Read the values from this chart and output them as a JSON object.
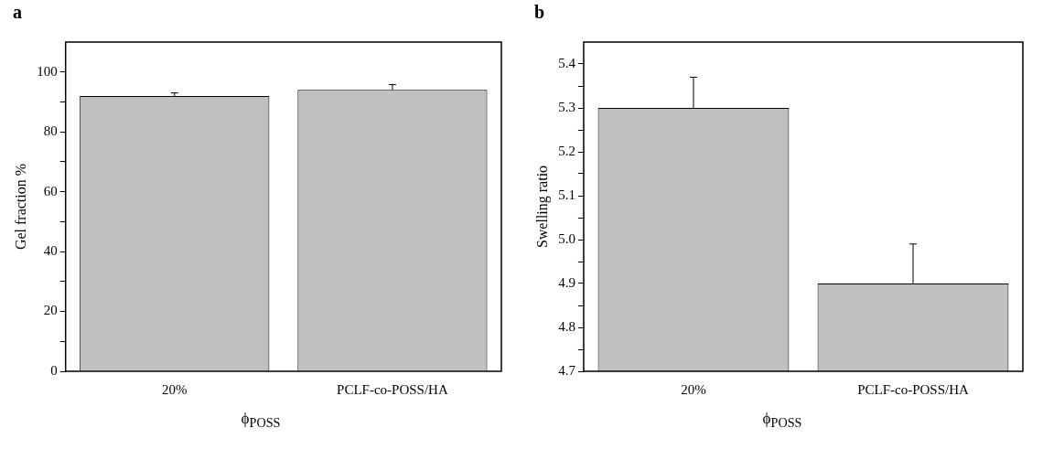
{
  "chart_data": [
    {
      "type": "bar",
      "title": "a",
      "xlabel": "ϕ$_{POSS}$",
      "ylabel": "Gel fraction %",
      "categories": [
        "20%",
        "PCLF-co-POSS/HA"
      ],
      "values": [
        92,
        94
      ],
      "errors": [
        1,
        1.8
      ],
      "color": "#c0c0c0",
      "ylim": [
        0,
        110
      ],
      "yticks": [
        0,
        {
          "value": 10,
          "label": null
        },
        20,
        {
          "value": 30,
          "label": null
        },
        40,
        {
          "value": 50,
          "label": null
        },
        60,
        {
          "value": 70,
          "label": null
        },
        80,
        {
          "value": 90,
          "label": null
        },
        100
      ],
      "grid": false,
      "legend": false
    },
    {
      "type": "bar",
      "title": "b",
      "xlabel": "ϕ$_{POSS}$",
      "ylabel": "Swelling ratio",
      "categories": [
        "20%",
        "PCLF-co-POSS/HA"
      ],
      "values": [
        5.3,
        4.9
      ],
      "errors": [
        0.07,
        0.09
      ],
      "color": "#c0c0c0",
      "ylim": [
        4.7,
        5.45
      ],
      "yticks": [
        {
          "value": 4.7,
          "label": "4.7"
        },
        {
          "value": 4.75,
          "label": null
        },
        {
          "value": 4.8,
          "label": "4.8"
        },
        {
          "value": 4.85,
          "label": null
        },
        {
          "value": 4.9,
          "label": "4.9"
        },
        {
          "value": 4.95,
          "label": null
        },
        {
          "value": 5.0,
          "label": "5.0"
        },
        {
          "value": 5.05,
          "label": null
        },
        {
          "value": 5.1,
          "label": "5.1"
        },
        {
          "value": 5.15,
          "label": null
        },
        {
          "value": 5.2,
          "label": "5.2"
        },
        {
          "value": 5.25,
          "label": null
        },
        {
          "value": 5.3,
          "label": "5.3"
        },
        {
          "value": 5.35,
          "label": null
        },
        {
          "value": 5.4,
          "label": "5.4"
        }
      ],
      "grid": false,
      "legend": false
    }
  ]
}
